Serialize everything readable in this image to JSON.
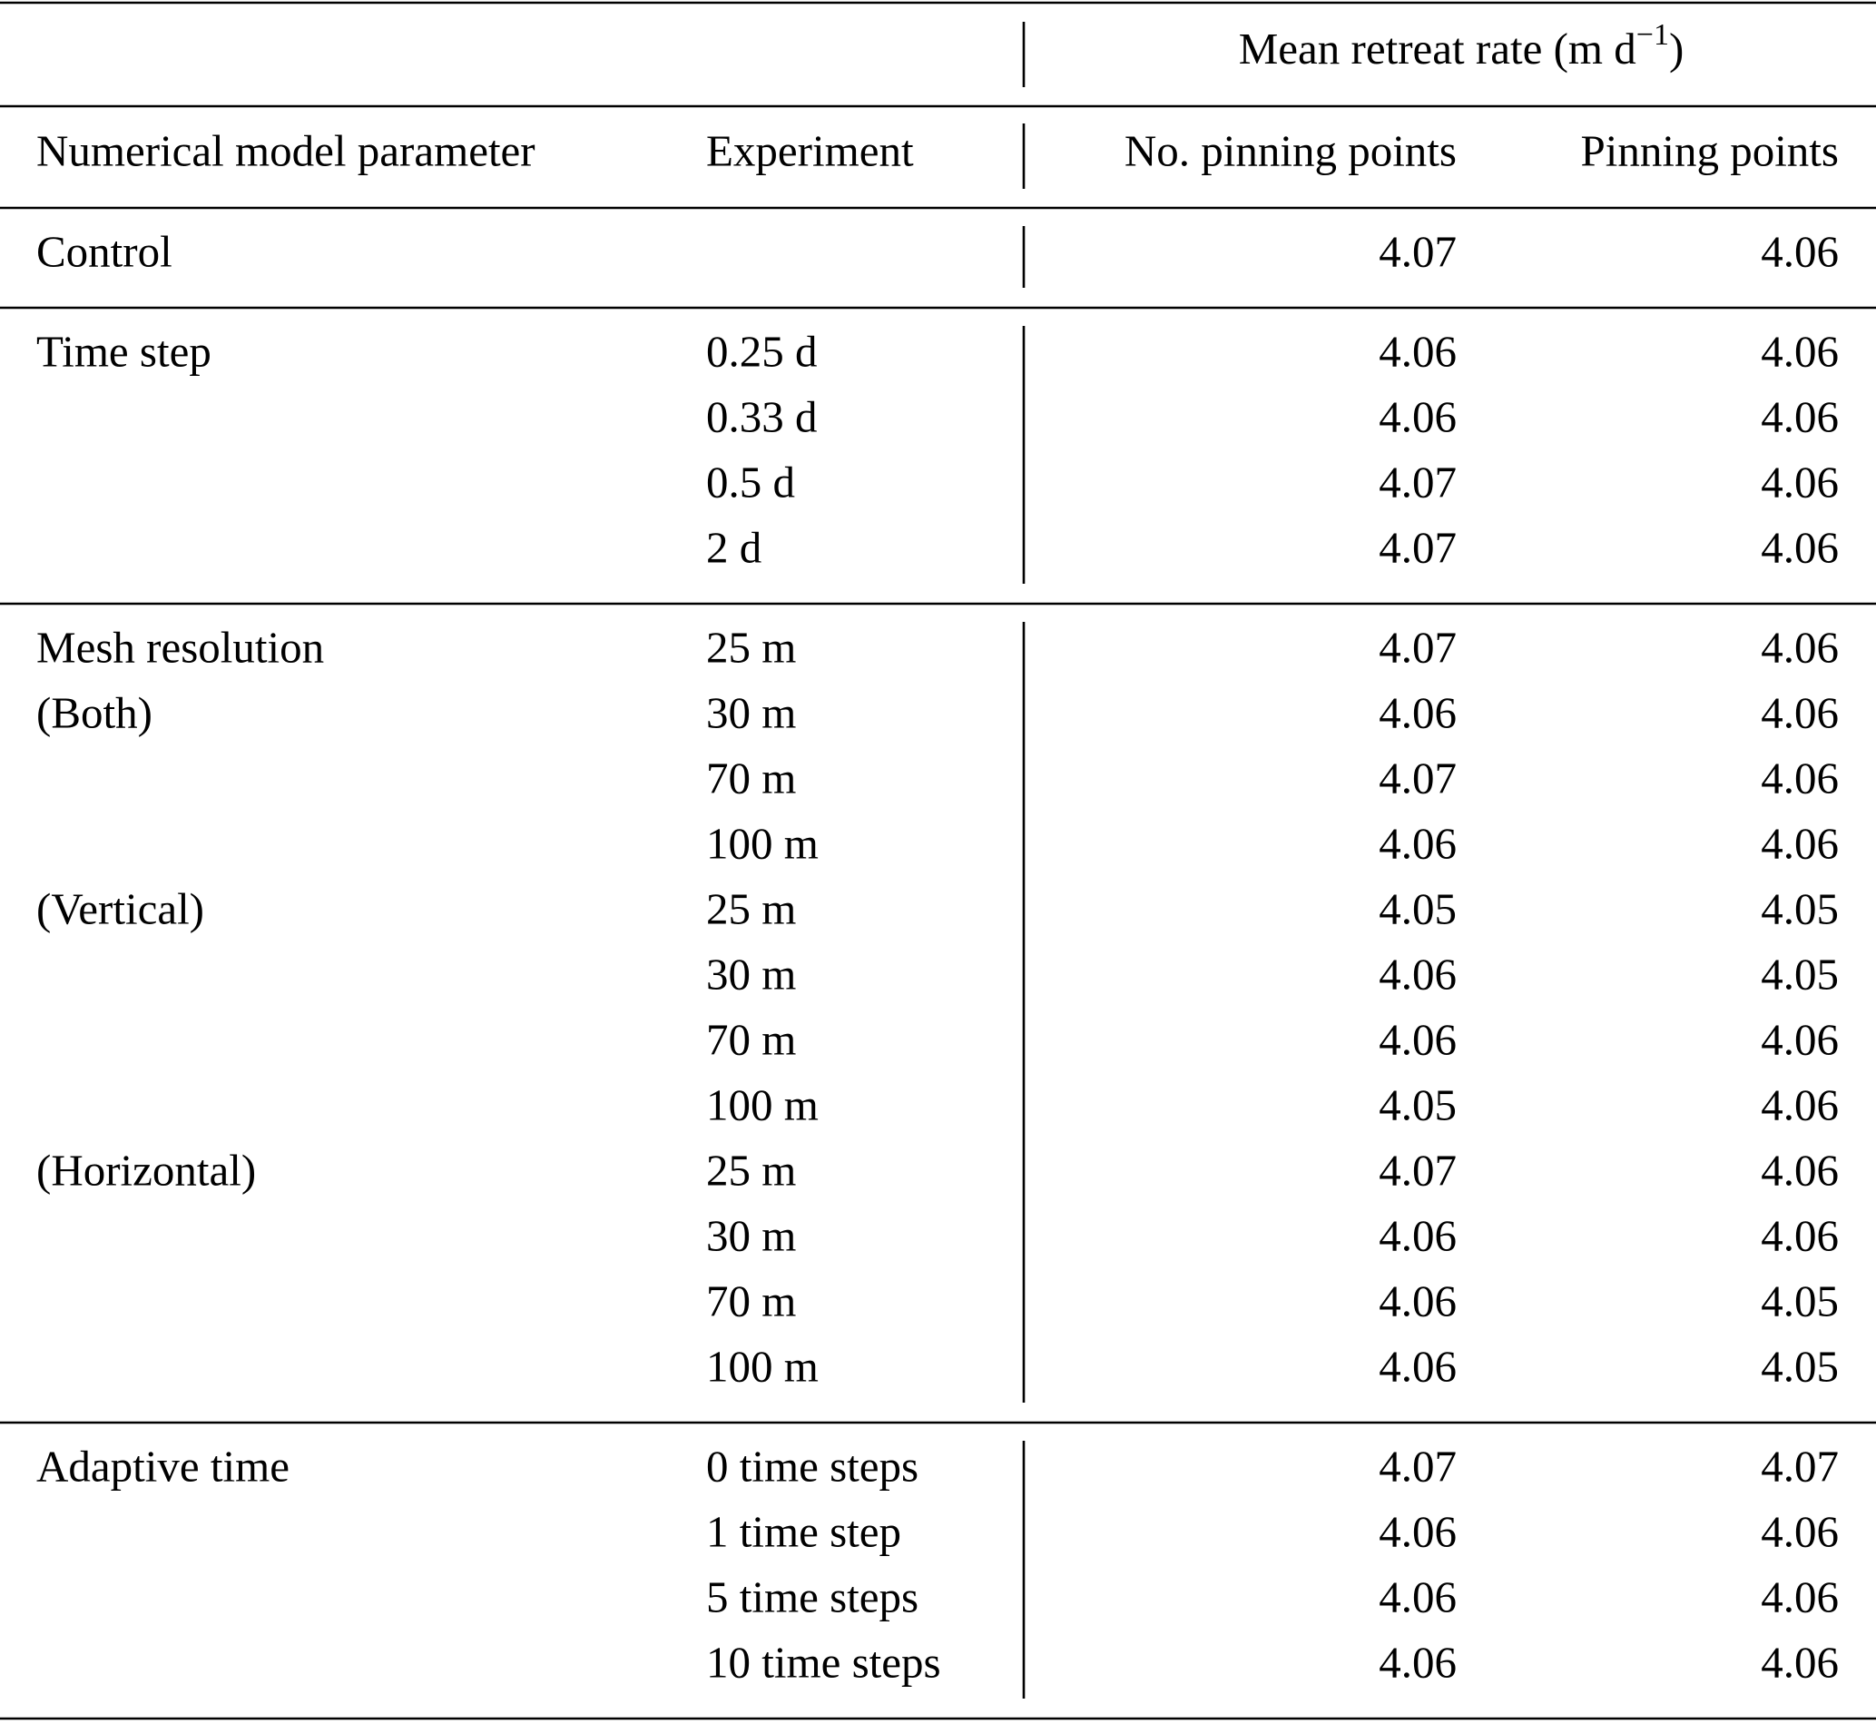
{
  "header": {
    "group_title": {
      "text": "Mean retreat rate (m d",
      "sup": "−1",
      "close": ")"
    },
    "columns": [
      "Numerical model parameter",
      "Experiment",
      "No. pinning points",
      "Pinning points"
    ]
  },
  "table": {
    "sections": [
      {
        "rows": [
          {
            "parameter": "Control",
            "values": [
              4.07,
              4.06
            ]
          }
        ]
      },
      {
        "rows": [
          {
            "parameter": "Time step",
            "experiment": "0.25 d",
            "values": [
              4.06,
              4.06
            ]
          },
          {
            "experiment": "0.33 d",
            "values": [
              4.06,
              4.06
            ]
          },
          {
            "experiment": "0.5 d",
            "values": [
              4.07,
              4.06
            ]
          },
          {
            "experiment": "2 d",
            "values": [
              4.07,
              4.06
            ]
          }
        ]
      },
      {
        "rows": [
          {
            "parameter": "Mesh resolution",
            "experiment": "25 m",
            "values": [
              4.07,
              4.06
            ]
          },
          {
            "parameter": "(Both)",
            "experiment": "30 m",
            "values": [
              4.06,
              4.06
            ]
          },
          {
            "experiment": "70 m",
            "values": [
              4.07,
              4.06
            ]
          },
          {
            "experiment": "100 m",
            "values": [
              4.06,
              4.06
            ]
          },
          {
            "parameter": "(Vertical)",
            "experiment": "25 m",
            "values": [
              4.05,
              4.05
            ]
          },
          {
            "experiment": "30 m",
            "values": [
              4.06,
              4.05
            ]
          },
          {
            "experiment": "70 m",
            "values": [
              4.06,
              4.06
            ]
          },
          {
            "experiment": "100 m",
            "values": [
              4.05,
              4.06
            ]
          },
          {
            "parameter": "(Horizontal)",
            "experiment": "25 m",
            "values": [
              4.07,
              4.06
            ]
          },
          {
            "experiment": "30 m",
            "values": [
              4.06,
              4.06
            ]
          },
          {
            "experiment": "70 m",
            "values": [
              4.06,
              4.05
            ]
          },
          {
            "experiment": "100 m",
            "values": [
              4.06,
              4.05
            ]
          }
        ]
      },
      {
        "rows": [
          {
            "parameter": "Adaptive time",
            "experiment": "0 time steps",
            "values": [
              4.07,
              4.07
            ]
          },
          {
            "experiment": "1 time step",
            "values": [
              4.06,
              4.06
            ]
          },
          {
            "experiment": "5 time steps",
            "values": [
              4.06,
              4.06
            ]
          },
          {
            "experiment": "10 time steps",
            "values": [
              4.06,
              4.06
            ]
          }
        ]
      }
    ]
  }
}
